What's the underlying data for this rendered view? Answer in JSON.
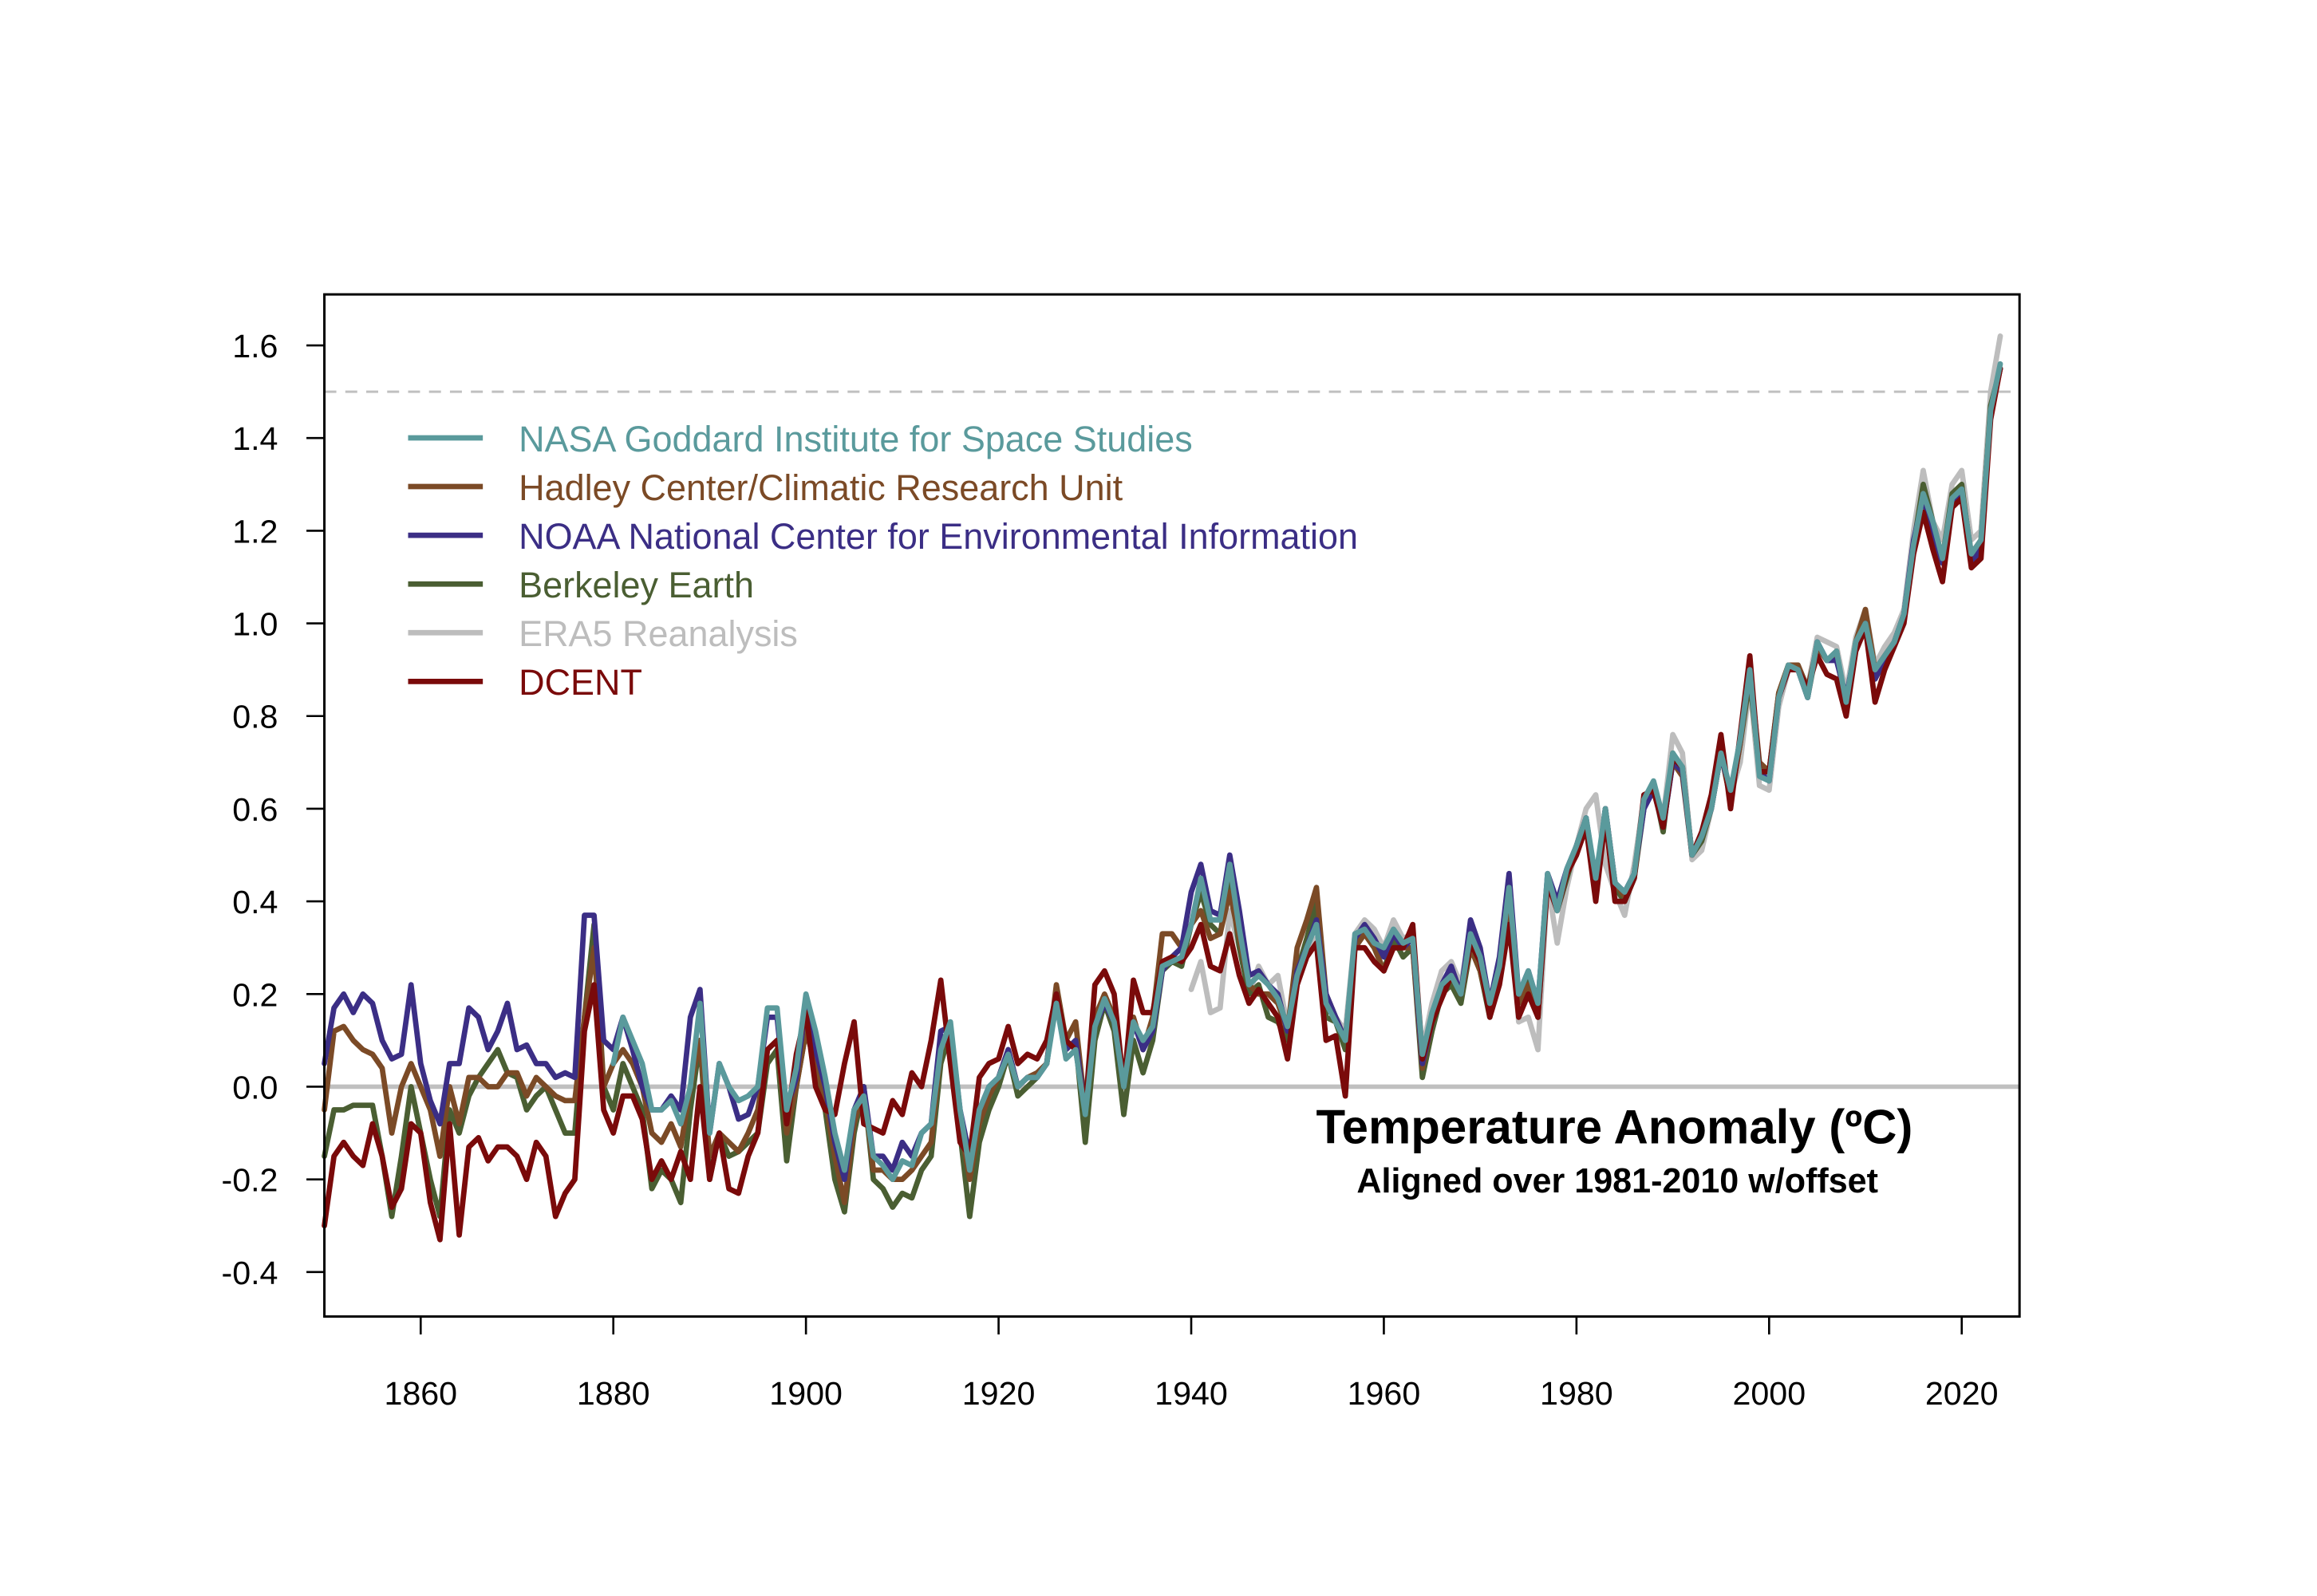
{
  "chart_data": {
    "type": "line",
    "title": "",
    "xlabel": "",
    "ylabel": "",
    "xlim": [
      1850,
      2026
    ],
    "ylim": [
      -0.496,
      1.71
    ],
    "x_ticks": [
      1860,
      1880,
      1900,
      1920,
      1940,
      1960,
      1980,
      2000,
      2020
    ],
    "y_ticks": [
      -0.4,
      -0.2,
      0.0,
      0.2,
      0.4,
      0.6,
      0.8,
      1.0,
      1.2,
      1.4,
      1.6
    ],
    "y_tick_labels": [
      "-0.4",
      "-0.2",
      "0.0",
      "0.2",
      "0.4",
      "0.6",
      "0.8",
      "1.0",
      "1.2",
      "1.4",
      "1.6"
    ],
    "grid": false,
    "legend_position": "top-left",
    "reference_lines": [
      {
        "y": 1.5,
        "style": "dashed",
        "color": "#c0c0c0"
      },
      {
        "y": 0.0,
        "style": "solid",
        "color": "#c0c0c0"
      }
    ],
    "annotation": {
      "title": "Temperature Anomaly (ºC)",
      "subtitle": "Aligned over 1981-2010 w/offset"
    },
    "series": [
      {
        "name": "NASA Goddard Institute for Space Studies",
        "color": "#5a9a9c",
        "start_year": 1880,
        "values": [
          0.05,
          0.15,
          0.1,
          0.05,
          -0.05,
          -0.05,
          -0.03,
          -0.08,
          0.0,
          0.18,
          -0.1,
          0.05,
          0.0,
          -0.03,
          -0.02,
          0.0,
          0.17,
          0.17,
          -0.05,
          0.04,
          0.2,
          0.12,
          0.02,
          -0.1,
          -0.18,
          -0.05,
          -0.02,
          -0.15,
          -0.17,
          -0.2,
          -0.16,
          -0.17,
          -0.1,
          -0.08,
          0.08,
          0.14,
          -0.05,
          -0.18,
          -0.05,
          0.0,
          0.02,
          0.07,
          0.0,
          0.02,
          0.02,
          0.05,
          0.18,
          0.06,
          0.08,
          -0.06,
          0.13,
          0.19,
          0.14,
          0.0,
          0.14,
          0.1,
          0.13,
          0.26,
          0.27,
          0.28,
          0.35,
          0.45,
          0.36,
          0.36,
          0.48,
          0.34,
          0.22,
          0.24,
          0.22,
          0.19,
          0.13,
          0.24,
          0.3,
          0.35,
          0.18,
          0.14,
          0.1,
          0.33,
          0.34,
          0.31,
          0.3,
          0.34,
          0.31,
          0.32,
          0.07,
          0.16,
          0.22,
          0.24,
          0.2,
          0.33,
          0.28,
          0.18,
          0.26,
          0.43,
          0.2,
          0.25,
          0.18,
          0.46,
          0.38,
          0.47,
          0.52,
          0.58,
          0.45,
          0.6,
          0.44,
          0.42,
          0.46,
          0.62,
          0.66,
          0.58,
          0.72,
          0.69,
          0.5,
          0.54,
          0.6,
          0.72,
          0.64,
          0.75,
          0.9,
          0.67,
          0.66,
          0.84,
          0.91,
          0.9,
          0.84,
          0.96,
          0.92,
          0.94,
          0.83,
          0.96,
          1.0,
          0.9,
          0.93,
          0.96,
          1.02,
          1.17,
          1.28,
          1.22,
          1.14,
          1.27,
          1.29,
          1.15,
          1.18,
          1.46,
          1.56
        ]
      },
      {
        "name": "Hadley Center/Climatic Research Unit",
        "color": "#7b4a26",
        "start_year": 1850,
        "values": [
          -0.05,
          0.12,
          0.13,
          0.1,
          0.08,
          0.07,
          0.04,
          -0.1,
          0.0,
          0.05,
          0.0,
          -0.05,
          -0.15,
          0.0,
          -0.08,
          0.02,
          0.02,
          0.0,
          0.0,
          0.03,
          0.03,
          -0.02,
          0.02,
          0.0,
          -0.02,
          -0.03,
          -0.03,
          0.15,
          0.3,
          0.0,
          0.05,
          0.08,
          0.05,
          0.0,
          -0.1,
          -0.12,
          -0.08,
          -0.13,
          0.0,
          0.1,
          -0.15,
          -0.1,
          -0.12,
          -0.14,
          -0.1,
          -0.05,
          0.08,
          0.1,
          -0.1,
          0.0,
          0.12,
          0.05,
          -0.03,
          -0.15,
          -0.25,
          -0.08,
          0.0,
          -0.18,
          -0.18,
          -0.2,
          -0.2,
          -0.18,
          -0.15,
          -0.12,
          0.08,
          0.12,
          -0.08,
          -0.2,
          -0.08,
          -0.02,
          0.02,
          0.08,
          0.0,
          0.02,
          0.03,
          0.05,
          0.22,
          0.1,
          0.14,
          -0.05,
          0.15,
          0.2,
          0.15,
          0.0,
          0.15,
          0.08,
          0.15,
          0.33,
          0.33,
          0.3,
          0.35,
          0.38,
          0.32,
          0.33,
          0.42,
          0.32,
          0.22,
          0.2,
          0.2,
          0.18,
          0.12,
          0.3,
          0.36,
          0.43,
          0.2,
          0.15,
          0.1,
          0.3,
          0.33,
          0.3,
          0.25,
          0.3,
          0.3,
          0.3,
          0.04,
          0.14,
          0.2,
          0.24,
          0.2,
          0.3,
          0.25,
          0.16,
          0.24,
          0.4,
          0.18,
          0.22,
          0.16,
          0.45,
          0.4,
          0.46,
          0.52,
          0.57,
          0.43,
          0.6,
          0.44,
          0.41,
          0.46,
          0.61,
          0.65,
          0.56,
          0.7,
          0.67,
          0.5,
          0.54,
          0.6,
          0.72,
          0.62,
          0.74,
          0.9,
          0.7,
          0.68,
          0.85,
          0.91,
          0.91,
          0.86,
          0.95,
          0.92,
          0.93,
          0.82,
          0.96,
          1.03,
          0.9,
          0.93,
          0.96,
          1.01,
          1.17,
          1.28,
          1.2,
          1.13,
          1.25,
          1.29,
          1.15,
          1.18,
          1.46,
          1.55
        ]
      },
      {
        "name": "NOAA National Center for Environmental Information",
        "color": "#3b2e85",
        "start_year": 1850,
        "values": [
          0.05,
          0.17,
          0.2,
          0.16,
          0.2,
          0.18,
          0.1,
          0.06,
          0.07,
          0.22,
          0.05,
          -0.03,
          -0.08,
          0.05,
          0.05,
          0.17,
          0.15,
          0.08,
          0.12,
          0.18,
          0.08,
          0.09,
          0.05,
          0.05,
          0.02,
          0.03,
          0.02,
          0.37,
          0.37,
          0.1,
          0.08,
          0.15,
          0.08,
          0.0,
          -0.05,
          -0.05,
          -0.02,
          -0.05,
          0.15,
          0.21,
          -0.1,
          0.05,
          0.0,
          -0.07,
          -0.06,
          0.0,
          0.15,
          0.15,
          -0.05,
          0.02,
          0.18,
          0.08,
          0.0,
          -0.12,
          -0.2,
          -0.05,
          0.0,
          -0.15,
          -0.15,
          -0.18,
          -0.12,
          -0.15,
          -0.1,
          -0.08,
          0.12,
          0.13,
          -0.05,
          -0.15,
          -0.05,
          0.0,
          0.02,
          0.08,
          0.0,
          0.02,
          0.02,
          0.05,
          0.2,
          0.08,
          0.1,
          -0.05,
          0.13,
          0.18,
          0.14,
          0.0,
          0.14,
          0.08,
          0.12,
          0.25,
          0.28,
          0.3,
          0.42,
          0.48,
          0.38,
          0.37,
          0.5,
          0.38,
          0.24,
          0.25,
          0.22,
          0.2,
          0.12,
          0.25,
          0.3,
          0.36,
          0.2,
          0.15,
          0.1,
          0.32,
          0.35,
          0.32,
          0.28,
          0.33,
          0.3,
          0.32,
          0.05,
          0.14,
          0.22,
          0.26,
          0.2,
          0.36,
          0.3,
          0.18,
          0.28,
          0.46,
          0.2,
          0.25,
          0.18,
          0.46,
          0.4,
          0.47,
          0.52,
          0.58,
          0.44,
          0.6,
          0.44,
          0.42,
          0.46,
          0.6,
          0.64,
          0.56,
          0.7,
          0.68,
          0.5,
          0.54,
          0.6,
          0.72,
          0.63,
          0.75,
          0.9,
          0.68,
          0.66,
          0.84,
          0.9,
          0.9,
          0.84,
          0.96,
          0.92,
          0.92,
          0.84,
          0.95,
          1.0,
          0.88,
          0.92,
          0.96,
          1.02,
          1.18,
          1.27,
          1.2,
          1.13,
          1.26,
          1.28,
          1.13,
          1.16,
          1.45,
          1.55
        ]
      },
      {
        "name": "Berkeley Earth",
        "color": "#4a5e32",
        "start_year": 1850,
        "values": [
          -0.15,
          -0.05,
          -0.05,
          -0.04,
          -0.04,
          -0.04,
          -0.15,
          -0.28,
          -0.15,
          0.0,
          -0.1,
          -0.2,
          -0.28,
          -0.05,
          -0.1,
          -0.02,
          0.02,
          0.05,
          0.08,
          0.03,
          0.02,
          -0.05,
          -0.02,
          0.0,
          -0.05,
          -0.1,
          -0.1,
          0.15,
          0.35,
          0.0,
          -0.05,
          0.05,
          0.0,
          -0.05,
          -0.22,
          -0.18,
          -0.2,
          -0.25,
          -0.05,
          0.1,
          -0.2,
          -0.1,
          -0.15,
          -0.14,
          -0.12,
          -0.1,
          0.05,
          0.08,
          -0.16,
          0.0,
          0.12,
          0.05,
          -0.05,
          -0.2,
          -0.27,
          -0.1,
          0.0,
          -0.2,
          -0.22,
          -0.26,
          -0.23,
          -0.24,
          -0.18,
          -0.15,
          0.05,
          0.12,
          -0.1,
          -0.28,
          -0.12,
          -0.05,
          0.0,
          0.07,
          -0.02,
          0.0,
          0.02,
          0.05,
          0.2,
          0.08,
          0.1,
          -0.12,
          0.1,
          0.18,
          0.12,
          -0.06,
          0.1,
          0.03,
          0.1,
          0.25,
          0.27,
          0.26,
          0.35,
          0.42,
          0.35,
          0.33,
          0.45,
          0.3,
          0.2,
          0.22,
          0.15,
          0.14,
          0.1,
          0.25,
          0.32,
          0.4,
          0.15,
          0.14,
          0.08,
          0.3,
          0.33,
          0.3,
          0.25,
          0.32,
          0.28,
          0.3,
          0.02,
          0.12,
          0.2,
          0.22,
          0.18,
          0.3,
          0.25,
          0.15,
          0.25,
          0.42,
          0.18,
          0.24,
          0.15,
          0.45,
          0.38,
          0.45,
          0.52,
          0.58,
          0.42,
          0.6,
          0.43,
          0.4,
          0.45,
          0.6,
          0.65,
          0.55,
          0.72,
          0.68,
          0.5,
          0.53,
          0.6,
          0.72,
          0.62,
          0.74,
          0.88,
          0.68,
          0.68,
          0.85,
          0.91,
          0.9,
          0.84,
          0.95,
          0.92,
          0.94,
          0.82,
          0.95,
          1.02,
          0.88,
          0.92,
          0.96,
          1.02,
          1.17,
          1.3,
          1.22,
          1.14,
          1.28,
          1.3,
          1.14,
          1.17,
          1.47,
          1.55
        ]
      },
      {
        "name": "ERA5 Reanalysis",
        "color": "#bdbdbd",
        "start_year": 1940,
        "values": [
          0.21,
          0.27,
          0.16,
          0.17,
          0.38,
          0.3,
          0.2,
          0.26,
          0.22,
          0.24,
          0.13,
          0.22,
          0.28,
          0.32,
          0.17,
          0.15,
          0.12,
          0.33,
          0.36,
          0.34,
          0.3,
          0.36,
          0.32,
          0.33,
          0.08,
          0.18,
          0.25,
          0.27,
          0.22,
          0.34,
          0.3,
          0.17,
          0.24,
          0.4,
          0.14,
          0.15,
          0.08,
          0.44,
          0.31,
          0.43,
          0.52,
          0.6,
          0.63,
          0.48,
          0.42,
          0.37,
          0.48,
          0.62,
          0.65,
          0.58,
          0.76,
          0.72,
          0.49,
          0.51,
          0.6,
          0.72,
          0.63,
          0.7,
          0.87,
          0.65,
          0.64,
          0.82,
          0.9,
          0.91,
          0.86,
          0.97,
          0.96,
          0.95,
          0.85,
          0.97,
          1.03,
          0.91,
          0.95,
          0.98,
          1.03,
          1.2,
          1.33,
          1.22,
          1.18,
          1.3,
          1.33,
          1.18,
          1.2,
          1.5,
          1.62
        ]
      },
      {
        "name": "DCENT",
        "color": "#7a0a0a",
        "start_year": 1850,
        "values": [
          -0.3,
          -0.15,
          -0.12,
          -0.15,
          -0.17,
          -0.08,
          -0.15,
          -0.26,
          -0.22,
          -0.08,
          -0.1,
          -0.25,
          -0.33,
          -0.08,
          -0.32,
          -0.13,
          -0.11,
          -0.16,
          -0.13,
          -0.13,
          -0.15,
          -0.2,
          -0.12,
          -0.15,
          -0.28,
          -0.23,
          -0.2,
          0.12,
          0.22,
          -0.05,
          -0.1,
          -0.02,
          -0.02,
          -0.07,
          -0.2,
          -0.16,
          -0.2,
          -0.14,
          -0.2,
          0.0,
          -0.2,
          -0.1,
          -0.22,
          -0.23,
          -0.15,
          -0.1,
          0.08,
          0.1,
          -0.08,
          0.07,
          0.16,
          0.0,
          -0.05,
          -0.06,
          0.05,
          0.14,
          -0.08,
          -0.09,
          -0.1,
          -0.03,
          -0.06,
          0.03,
          0.0,
          0.1,
          0.23,
          0.05,
          -0.12,
          -0.15,
          0.02,
          0.05,
          0.06,
          0.13,
          0.05,
          0.07,
          0.06,
          0.1,
          0.2,
          0.1,
          0.08,
          -0.05,
          0.22,
          0.25,
          0.2,
          0.0,
          0.23,
          0.16,
          0.16,
          0.27,
          0.28,
          0.27,
          0.3,
          0.35,
          0.26,
          0.25,
          0.33,
          0.24,
          0.18,
          0.21,
          0.18,
          0.15,
          0.06,
          0.22,
          0.28,
          0.31,
          0.1,
          0.11,
          -0.02,
          0.3,
          0.3,
          0.27,
          0.25,
          0.3,
          0.3,
          0.35,
          0.06,
          0.14,
          0.19,
          0.24,
          0.2,
          0.31,
          0.27,
          0.15,
          0.22,
          0.35,
          0.15,
          0.2,
          0.15,
          0.44,
          0.38,
          0.46,
          0.5,
          0.56,
          0.4,
          0.58,
          0.4,
          0.4,
          0.45,
          0.63,
          0.64,
          0.56,
          0.71,
          0.69,
          0.5,
          0.55,
          0.63,
          0.76,
          0.6,
          0.76,
          0.93,
          0.68,
          0.68,
          0.84,
          0.9,
          0.9,
          0.86,
          0.93,
          0.89,
          0.88,
          0.8,
          0.94,
          0.99,
          0.83,
          0.9,
          0.95,
          1.0,
          1.15,
          1.24,
          1.16,
          1.09,
          1.25,
          1.27,
          1.12,
          1.14,
          1.44,
          1.55
        ]
      }
    ],
    "draw_order": [
      "ERA5 Reanalysis",
      "Berkeley Earth",
      "Hadley Center/Climatic Research Unit",
      "NOAA National Center for Environmental Information",
      "DCENT",
      "NASA Goddard Institute for Space Studies"
    ]
  }
}
